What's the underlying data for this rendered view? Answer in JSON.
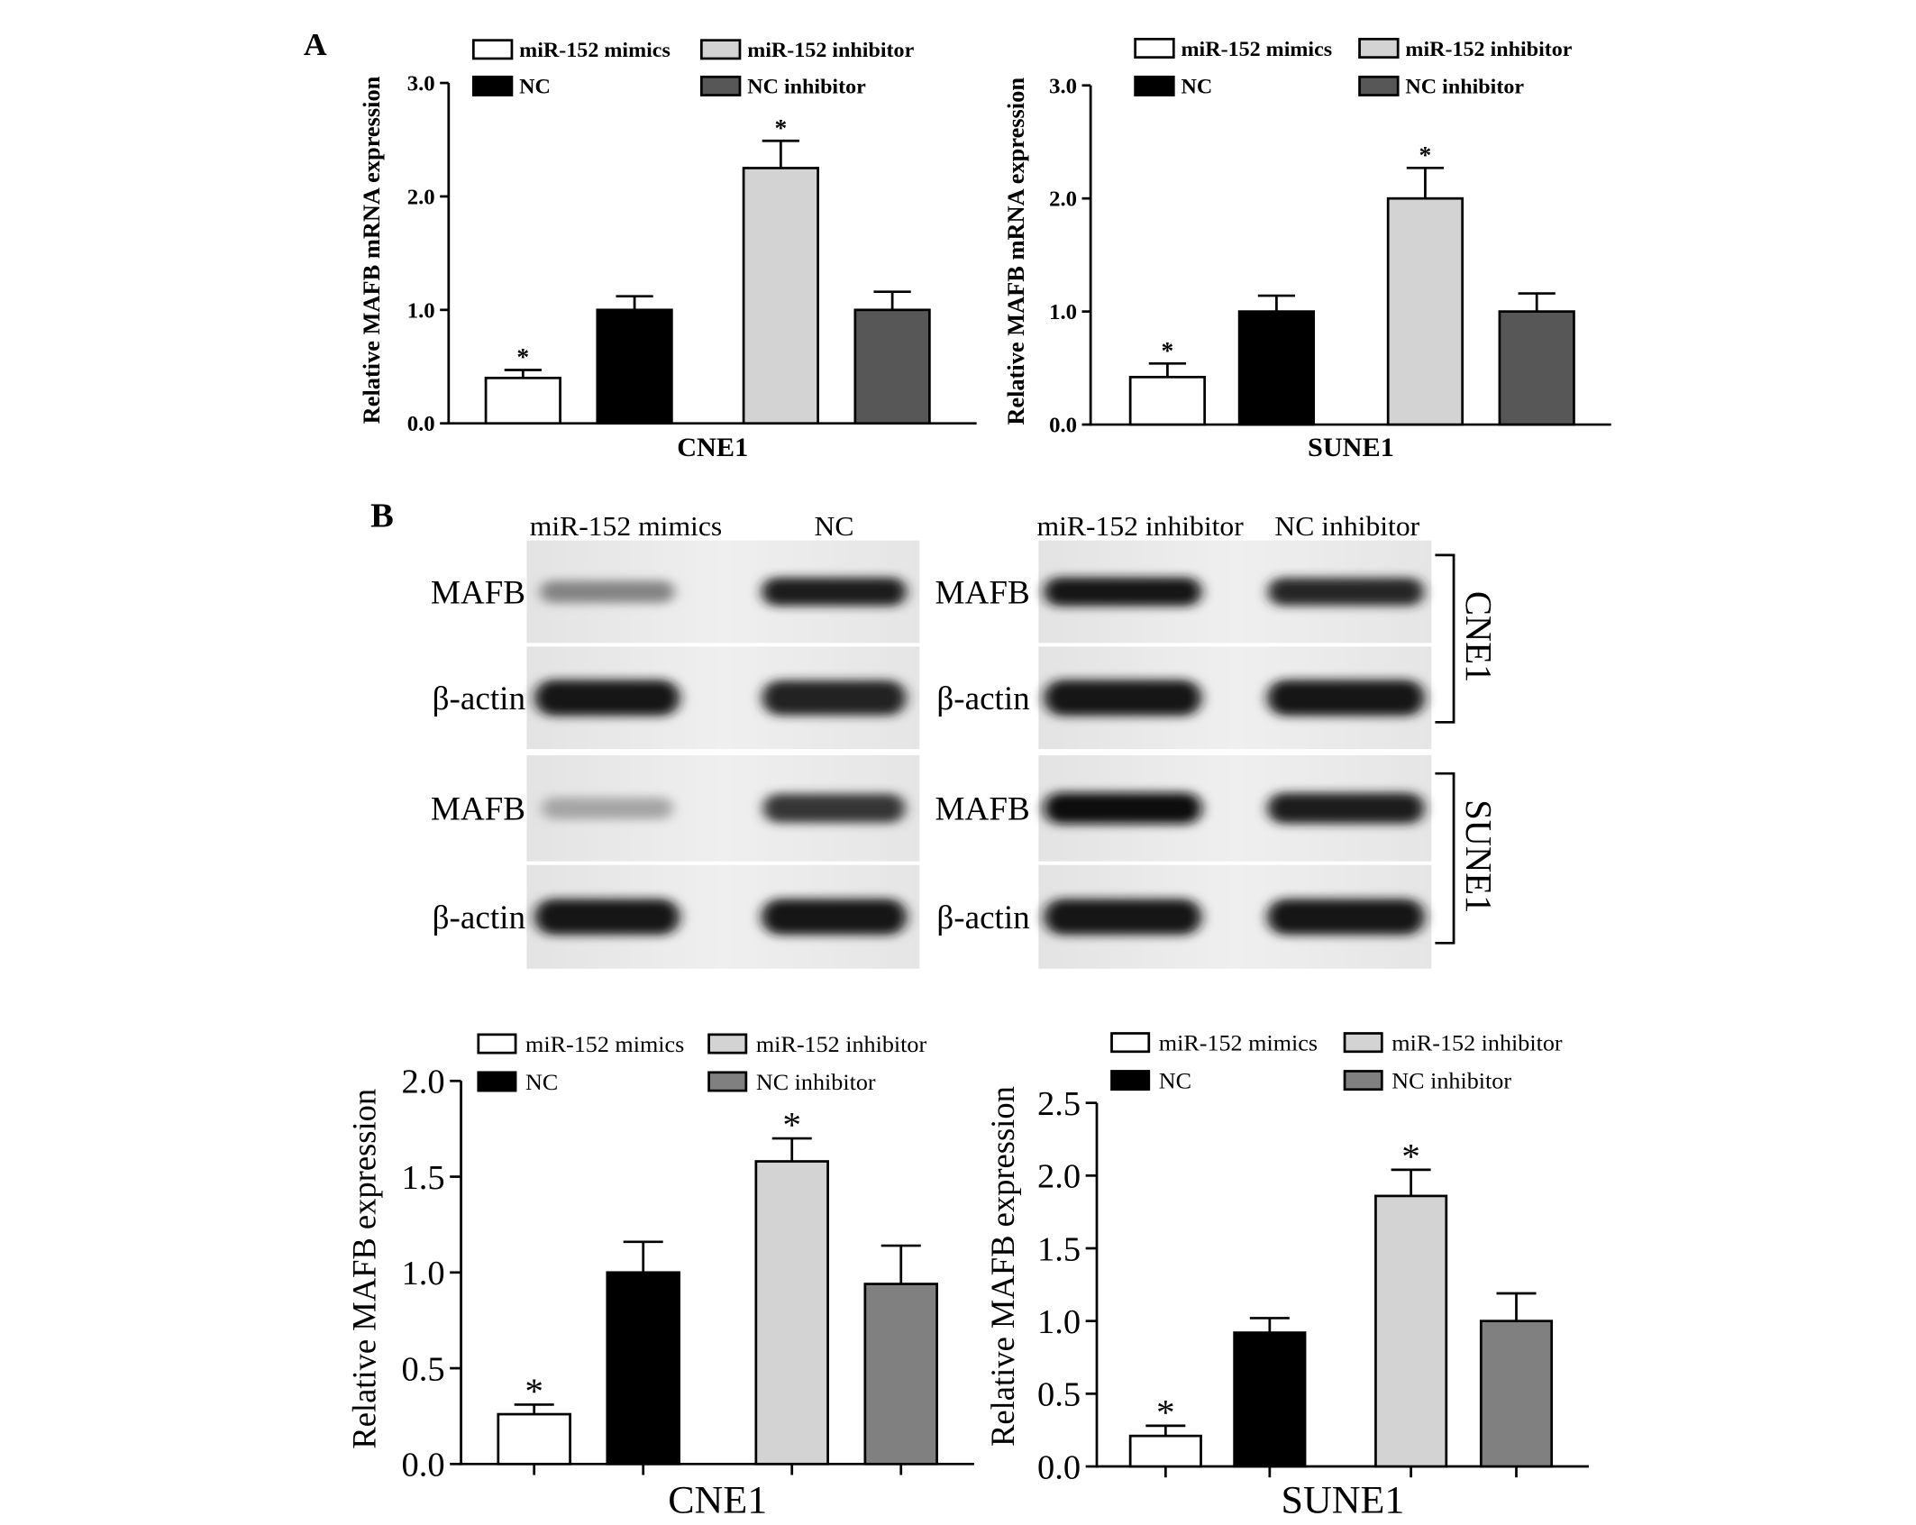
{
  "figure": {
    "panel_a_label": "A",
    "panel_b_label": "B"
  },
  "chart_data": [
    {
      "type": "bar",
      "categories": [
        "miR-152 mimics",
        "NC",
        "miR-152 inhibitor",
        "NC inhibitor"
      ],
      "values": [
        0.4,
        1.0,
        2.25,
        1.0
      ],
      "errors": [
        0.07,
        0.12,
        0.24,
        0.16
      ],
      "significant": [
        true,
        false,
        true,
        false
      ],
      "significance_marker": "*",
      "xlabel": "CNE1",
      "ylabel": "Relative MAFB mRNA expression",
      "ylim": [
        0,
        3.0
      ],
      "yticks": [
        "0.0",
        "1.0",
        "2.0",
        "3.0"
      ],
      "colors": [
        "#ffffff",
        "#000000",
        "#d3d3d3",
        "#575757"
      ],
      "legend_position": "top",
      "grid": false
    },
    {
      "type": "bar",
      "categories": [
        "miR-152 mimics",
        "NC",
        "miR-152 inhibitor",
        "NC inhibitor"
      ],
      "values": [
        0.42,
        1.0,
        2.0,
        1.0
      ],
      "errors": [
        0.12,
        0.14,
        0.27,
        0.16
      ],
      "significant": [
        true,
        false,
        true,
        false
      ],
      "significance_marker": "*",
      "xlabel": "SUNE1",
      "ylabel": "Relative MAFB mRNA expression",
      "ylim": [
        0,
        3.0
      ],
      "yticks": [
        "0.0",
        "1.0",
        "2.0",
        "3.0"
      ],
      "colors": [
        "#ffffff",
        "#000000",
        "#d3d3d3",
        "#575757"
      ],
      "legend_position": "top",
      "grid": false
    },
    {
      "type": "bar",
      "categories": [
        "miR-152 mimics",
        "NC",
        "miR-152 inhibitor",
        "NC inhibitor"
      ],
      "values": [
        0.26,
        1.0,
        1.58,
        0.94
      ],
      "errors": [
        0.05,
        0.16,
        0.12,
        0.2
      ],
      "significant": [
        true,
        false,
        true,
        false
      ],
      "significance_marker": "*",
      "xlabel": "CNE1",
      "ylabel": "Relative MAFB expression",
      "ylim": [
        0,
        2.0
      ],
      "yticks": [
        "0.0",
        "0.5",
        "1.0",
        "1.5",
        "2.0"
      ],
      "colors": [
        "#ffffff",
        "#000000",
        "#d3d3d3",
        "#808080"
      ],
      "legend_position": "top",
      "grid": false
    },
    {
      "type": "bar",
      "categories": [
        "miR-152 mimics",
        "NC",
        "miR-152 inhibitor",
        "NC inhibitor"
      ],
      "values": [
        0.21,
        0.92,
        1.86,
        1.0
      ],
      "errors": [
        0.07,
        0.1,
        0.18,
        0.19
      ],
      "significant": [
        true,
        false,
        true,
        false
      ],
      "significance_marker": "*",
      "xlabel": "SUNE1",
      "ylabel": "Relative MAFB expression",
      "ylim": [
        0,
        2.5
      ],
      "yticks": [
        "0.0",
        "0.5",
        "1.0",
        "1.5",
        "2.0",
        "2.5"
      ],
      "colors": [
        "#ffffff",
        "#000000",
        "#d3d3d3",
        "#808080"
      ],
      "legend_position": "top",
      "grid": false
    }
  ],
  "blot": {
    "left_columns": [
      "miR-152 mimics",
      "NC"
    ],
    "right_columns": [
      "miR-152 inhibitor",
      "NC inhibitor"
    ],
    "groups": [
      {
        "cell_line": "CNE1",
        "rows": [
          {
            "label": "MAFB",
            "intensity_left": [
              0.45,
              0.92
            ],
            "intensity_right": [
              0.95,
              0.88
            ]
          },
          {
            "label": "β-actin",
            "intensity_left": [
              0.95,
              0.9
            ],
            "intensity_right": [
              0.95,
              0.95
            ]
          }
        ]
      },
      {
        "cell_line": "SUNE1",
        "rows": [
          {
            "label": "MAFB",
            "intensity_left": [
              0.3,
              0.8
            ],
            "intensity_right": [
              0.97,
              0.92
            ]
          },
          {
            "label": "β-actin",
            "intensity_left": [
              0.95,
              0.95
            ],
            "intensity_right": [
              0.95,
              0.95
            ]
          }
        ]
      }
    ]
  }
}
